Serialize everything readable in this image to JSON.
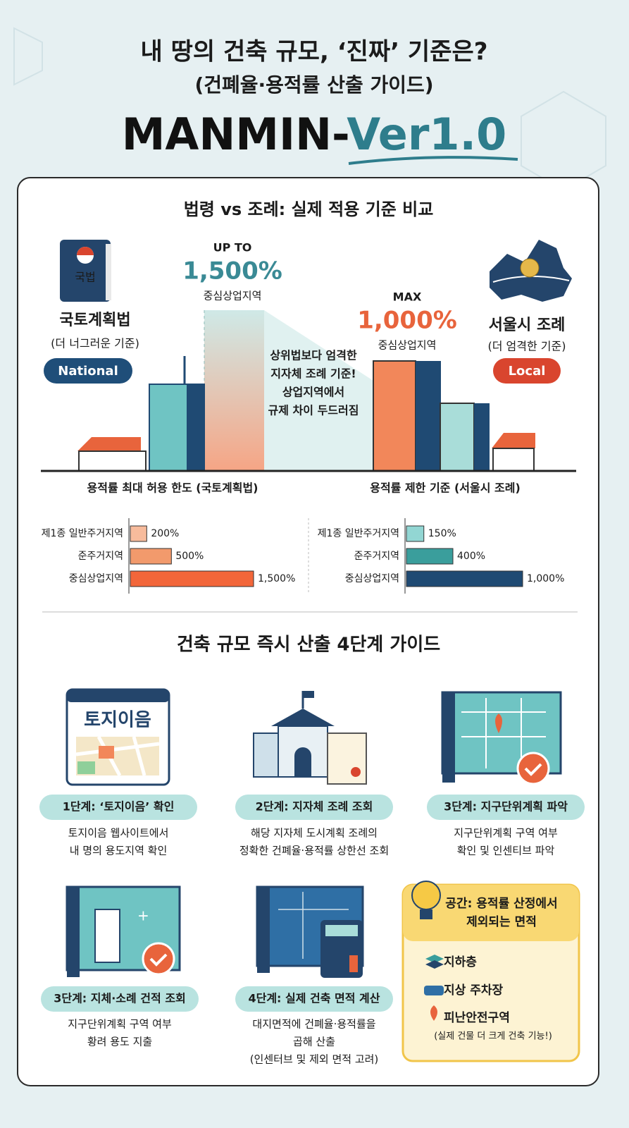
{
  "header": {
    "title": "내 땅의 건축 규모, ‘진짜’ 기준은?",
    "subtitle": "(건폐율·용적률 산출 가이드)",
    "brand": "MANMIN-",
    "brand_version": "Ver1.0"
  },
  "comparison": {
    "title": "법령 vs 조례: 실제 적용 기준 비교",
    "national": {
      "book_label": "국법",
      "name": "국토계획법",
      "note": "(더 너그러운 기준)",
      "badge": "National",
      "prefix": "UP TO",
      "value": "1,500%",
      "zone": "중심상업지역"
    },
    "local": {
      "name": "서울시 조례",
      "note": "(더 엄격한 기준)",
      "badge": "Local",
      "prefix": "MAX",
      "value": "1,000%",
      "zone": "중심상업지역"
    },
    "callout": [
      "상위법보다 엄격한",
      "지자체 조례 기준!",
      "상업지역에서",
      "규제 차이 두드러짐"
    ]
  },
  "chart_data": [
    {
      "type": "bar",
      "orientation": "horizontal",
      "title": "용적률 최대 허용 한도 (국토계획법)",
      "categories": [
        "제1종 일반주거지역",
        "준주거지역",
        "중심상업지역"
      ],
      "values": [
        200,
        500,
        1500
      ],
      "value_labels": [
        "200%",
        "500%",
        "1,500%"
      ],
      "colors": [
        "#f7bb9c",
        "#f29a6c",
        "#f2663a"
      ]
    },
    {
      "type": "bar",
      "orientation": "horizontal",
      "title": "용적률 제한 기준 (서울시 조례)",
      "categories": [
        "제1종 일반주거지역",
        "준주거지역",
        "중심상업지역"
      ],
      "values": [
        150,
        400,
        1000
      ],
      "value_labels": [
        "150%",
        "400%",
        "1,000%"
      ],
      "colors": [
        "#92d6d3",
        "#3a9e9c",
        "#1f4a73"
      ]
    }
  ],
  "guide": {
    "title": "건축 규모 즉시 산출 4단계 가이드",
    "steps": [
      {
        "icon_text": "토지이음",
        "label": "1단계: ‘토지이음’ 확인",
        "desc": [
          "토지이음 웹사이트에서",
          "내 명의 용도지역 확인"
        ]
      },
      {
        "label": "2단계: 지자체 조례 조회",
        "desc": [
          "해당 지자체 도시계획 조례의",
          "정확한 건폐율·용적률 상한선 조회"
        ]
      },
      {
        "label": "3단계: 지구단위계획 파악",
        "desc": [
          "지구단위계획 구역 여부",
          "확인 및 인센티브 파악"
        ]
      },
      {
        "label": "3단계: 지체·소례 건적 조회",
        "desc": [
          "지구단위계획 구역 여부",
          "황려 용도 지출"
        ]
      },
      {
        "label": "4단계: 실제 건축 면적 계산",
        "desc": [
          "대지면적에 건폐율·용적률을",
          "곱해 산출",
          "(인센터브 및 제외 면적 고려)"
        ]
      }
    ],
    "tip": {
      "title": [
        "공간: 용적률 산정에서",
        "제외되는 면적"
      ],
      "items": [
        "지하층",
        "지상 주차장",
        "피난안전구역"
      ],
      "item_note": "(실제 건물 더 크게 건축 기능!)"
    }
  }
}
